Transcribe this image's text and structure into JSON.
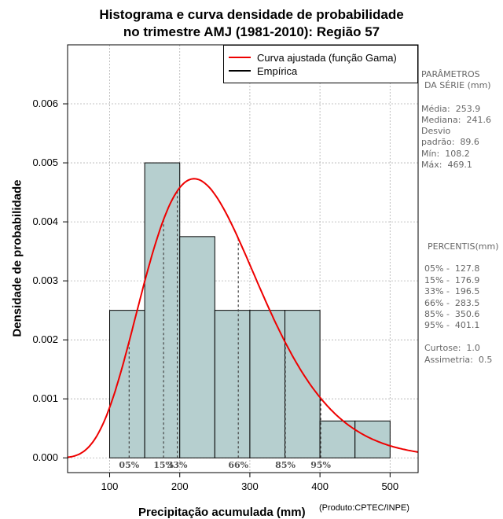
{
  "title": {
    "line1": "Histograma e curva densidade de probabilidade",
    "line2": "no trimestre AMJ (1981-2010): Região 57"
  },
  "legend": {
    "fitted_label": "Curva ajustada (função Gama)",
    "empirical_label": "Empírica"
  },
  "parameters": {
    "header1": "PARÂMETROS",
    "header2": "DA SÉRIE (mm)",
    "media": "Média:  253.9",
    "mediana": "Mediana:  241.6",
    "desvio1": "Desvio",
    "desvio2": "padrão:  89.6",
    "min": "Mín:  108.2",
    "max": "Máx:  469.1"
  },
  "percentis": {
    "header": "PERCENTIS(mm)",
    "p05": "05% -  127.8",
    "p15": "15% -  176.9",
    "p33": "33% -  196.5",
    "p66": "66% -  283.5",
    "p85": "85% -  350.6",
    "p95": "95% -  401.1",
    "curtose": "Curtose:  1.0",
    "assimetria": "Assimetria:  0.5"
  },
  "axes": {
    "xlabel": "Precipitação acumulada (mm)",
    "ylabel": "Densidade de probabilidade",
    "credit": "(Produto:CPTEC/INPE)"
  },
  "chart_data": {
    "type": "bar",
    "subtype": "histogram",
    "xlim": [
      40,
      540
    ],
    "ylim": [
      -0.00025,
      0.007
    ],
    "x_ticks": [
      100,
      200,
      300,
      400,
      500
    ],
    "y_ticks": [
      0.0,
      0.001,
      0.002,
      0.003,
      0.004,
      0.005,
      0.006
    ],
    "y_tick_labels": [
      "0.000",
      "0.001",
      "0.002",
      "0.003",
      "0.004",
      "0.005",
      "0.006"
    ],
    "bins": [
      {
        "from": 100,
        "to": 150,
        "density": 0.0025
      },
      {
        "from": 150,
        "to": 200,
        "density": 0.005
      },
      {
        "from": 200,
        "to": 250,
        "density": 0.00375
      },
      {
        "from": 250,
        "to": 300,
        "density": 0.0025
      },
      {
        "from": 300,
        "to": 350,
        "density": 0.0025
      },
      {
        "from": 350,
        "to": 400,
        "density": 0.0025
      },
      {
        "from": 400,
        "to": 450,
        "density": 0.000625
      },
      {
        "from": 450,
        "to": 500,
        "density": 0.000625
      }
    ],
    "bar_color": "#b6cfcf",
    "curve_color": "#ee0000",
    "gamma_fit": {
      "shape": 8.0,
      "scale": 31.5
    },
    "percentile_lines": [
      {
        "label": "05%",
        "value": 127.8
      },
      {
        "label": "15%",
        "value": 176.9
      },
      {
        "label": "33%",
        "value": 196.5
      },
      {
        "label": "66%",
        "value": 283.5
      },
      {
        "label": "85%",
        "value": 350.6
      },
      {
        "label": "95%",
        "value": 401.1
      }
    ],
    "grid": true,
    "legend_position": "top-right"
  }
}
